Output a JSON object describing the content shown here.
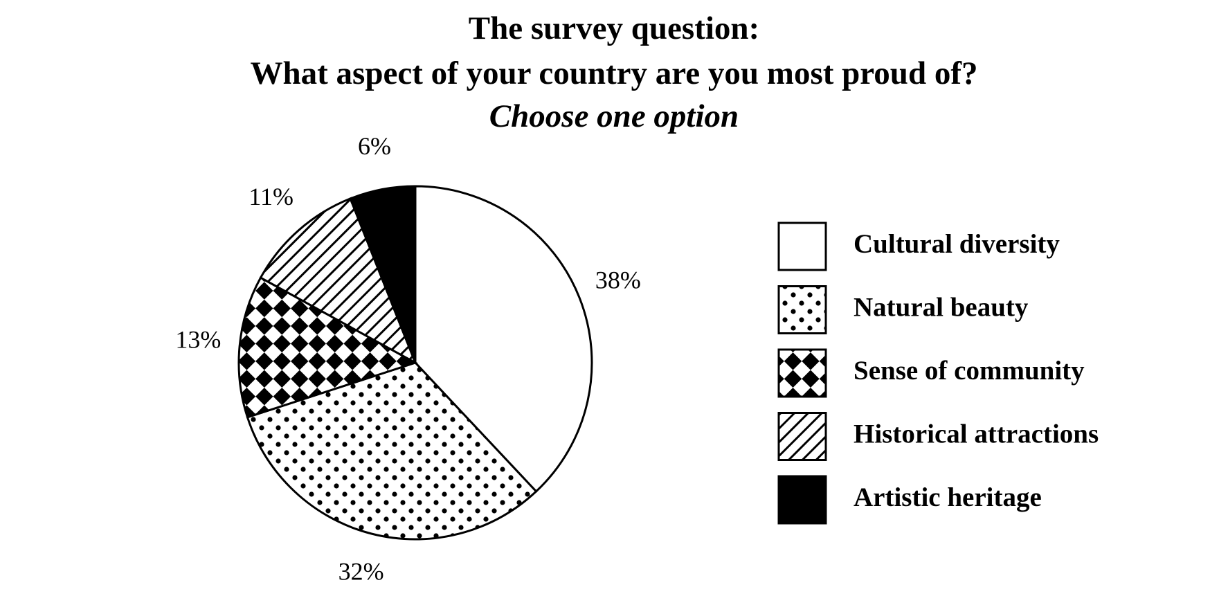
{
  "chart_data": {
    "type": "pie",
    "title": [
      "The survey question:",
      "What aspect of your country are you most proud of?"
    ],
    "subtitle": "Choose one option",
    "categories": [
      "Cultural diversity",
      "Natural beauty",
      "Sense of community",
      "Historical attractions",
      "Artistic heritage"
    ],
    "values": [
      38,
      32,
      13,
      11,
      6
    ],
    "value_labels": [
      "38%",
      "32%",
      "13%",
      "11%",
      "6%"
    ],
    "patterns": [
      "none",
      "dots",
      "checker",
      "hatch",
      "solid"
    ],
    "legend": "right"
  }
}
